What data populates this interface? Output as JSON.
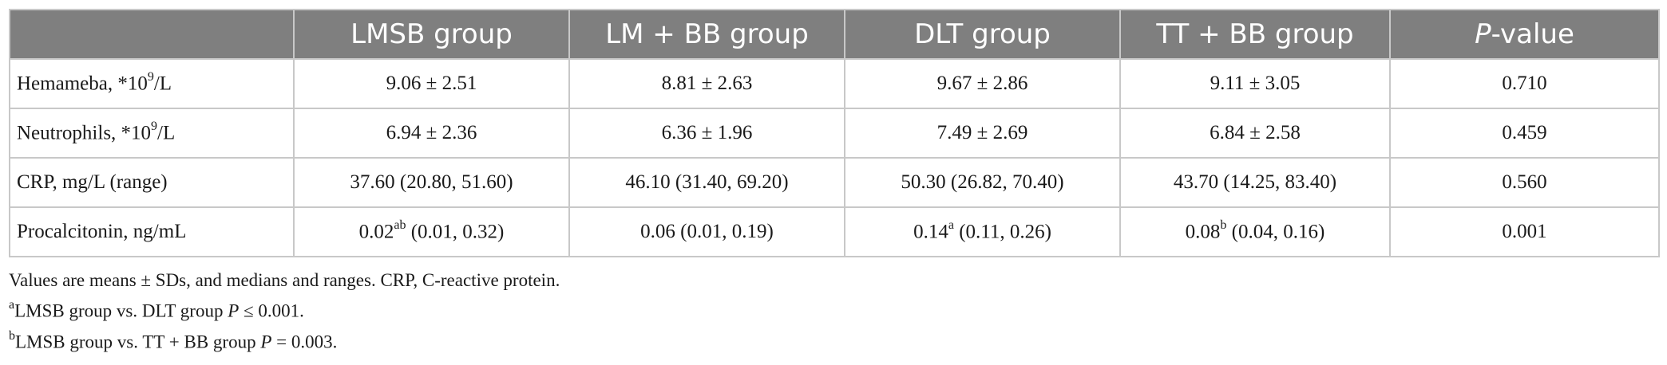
{
  "table": {
    "columns": [
      {
        "label": "",
        "italic_prefix": "",
        "suffix": ""
      },
      {
        "label": "LMSB group"
      },
      {
        "label": "LM + BB group"
      },
      {
        "label": "DLT group"
      },
      {
        "label": "TT + BB group"
      },
      {
        "label_italic": "P",
        "label_rest": "-value"
      }
    ],
    "rows": [
      {
        "label": "Hemameba, *10",
        "label_sup": "9",
        "label_after": "/L",
        "cells": [
          {
            "value": "9.06 ± 2.51"
          },
          {
            "value": "8.81 ± 2.63"
          },
          {
            "value": "9.67 ± 2.86"
          },
          {
            "value": "9.11 ± 3.05"
          },
          {
            "value": "0.710"
          }
        ]
      },
      {
        "label": "Neutrophils, *10",
        "label_sup": "9",
        "label_after": "/L",
        "cells": [
          {
            "value": "6.94 ± 2.36"
          },
          {
            "value": "6.36 ± 1.96"
          },
          {
            "value": "7.49 ± 2.69"
          },
          {
            "value": "6.84 ± 2.58"
          },
          {
            "value": "0.459"
          }
        ]
      },
      {
        "label": "CRP, mg/L (range)",
        "label_sup": "",
        "label_after": "",
        "cells": [
          {
            "value": "37.60 (20.80, 51.60)"
          },
          {
            "value": "46.10 (31.40, 69.20)"
          },
          {
            "value": "50.30 (26.82, 70.40)"
          },
          {
            "value": "43.70 (14.25, 83.40)"
          },
          {
            "value": "0.560"
          }
        ]
      },
      {
        "label": "Procalcitonin, ng/mL",
        "label_sup": "",
        "label_after": "",
        "cells": [
          {
            "value": "0.02",
            "sup": "ab",
            "rest": " (0.01, 0.32)"
          },
          {
            "value": "0.06 (0.01, 0.19)"
          },
          {
            "value": "0.14",
            "sup": "a",
            "rest": " (0.11, 0.26)"
          },
          {
            "value": "0.08",
            "sup": "b",
            "rest": " (0.04, 0.16)"
          },
          {
            "value": "0.001"
          }
        ]
      }
    ]
  },
  "notes": {
    "line1": "Values are means ± SDs, and medians and ranges. CRP, C-reactive protein.",
    "line2": {
      "sup": "a",
      "text": "LMSB group vs. DLT group ",
      "italic": "P",
      "after": " ≤ 0.001."
    },
    "line3": {
      "sup": "b",
      "text": "LMSB group vs. TT + BB group ",
      "italic": "P",
      "after": " = 0.003."
    }
  }
}
